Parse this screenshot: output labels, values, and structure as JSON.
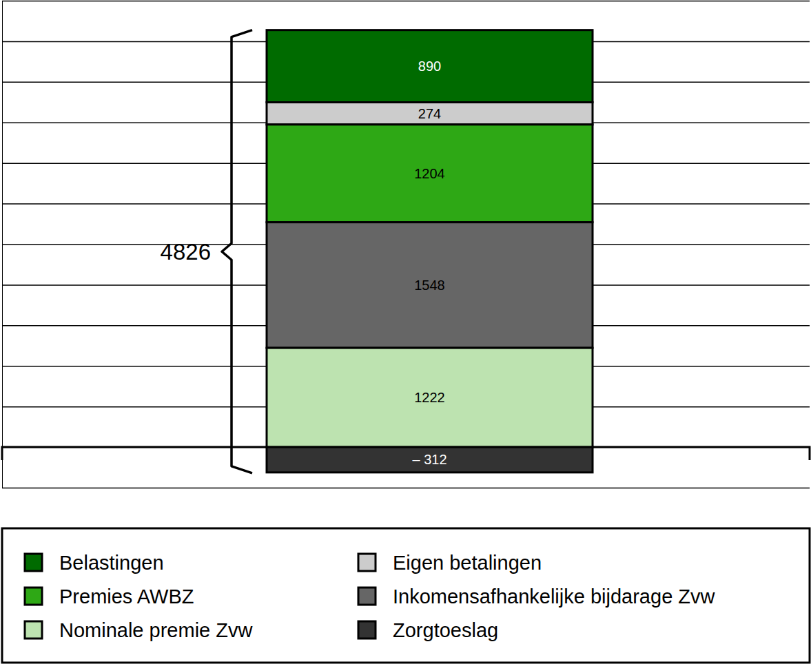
{
  "chart_data": {
    "type": "bar",
    "stacked": true,
    "categories": [
      null
    ],
    "series": [
      {
        "name": "Belastingen",
        "color": "#006b00",
        "values": [
          890
        ]
      },
      {
        "name": "Eigen betalingen",
        "color": "#cccccc",
        "values": [
          274
        ]
      },
      {
        "name": "Premies AWBZ",
        "color": "#2ea815",
        "values": [
          1204
        ]
      },
      {
        "name": "Inkomensafhankelijke bijdarage Zvw",
        "color": "#666666",
        "values": [
          1548
        ]
      },
      {
        "name": "Nominale premie Zvw",
        "color": "#bde3b0",
        "values": [
          1222
        ]
      },
      {
        "name": "Zorgtoeslag",
        "color": "#333333",
        "values": [
          -312
        ],
        "value_labels": [
          "– 312"
        ]
      }
    ],
    "ylim": [
      -500,
      5500
    ],
    "yticks": [
      -500,
      0,
      500,
      1000,
      1500,
      2000,
      2500,
      3000,
      3500,
      4000,
      4500,
      5000,
      5500
    ],
    "grid": true,
    "tick_labels": false,
    "data_labels": true,
    "legend": "bottom",
    "annotations": [
      {
        "text": "4826"
      }
    ]
  }
}
